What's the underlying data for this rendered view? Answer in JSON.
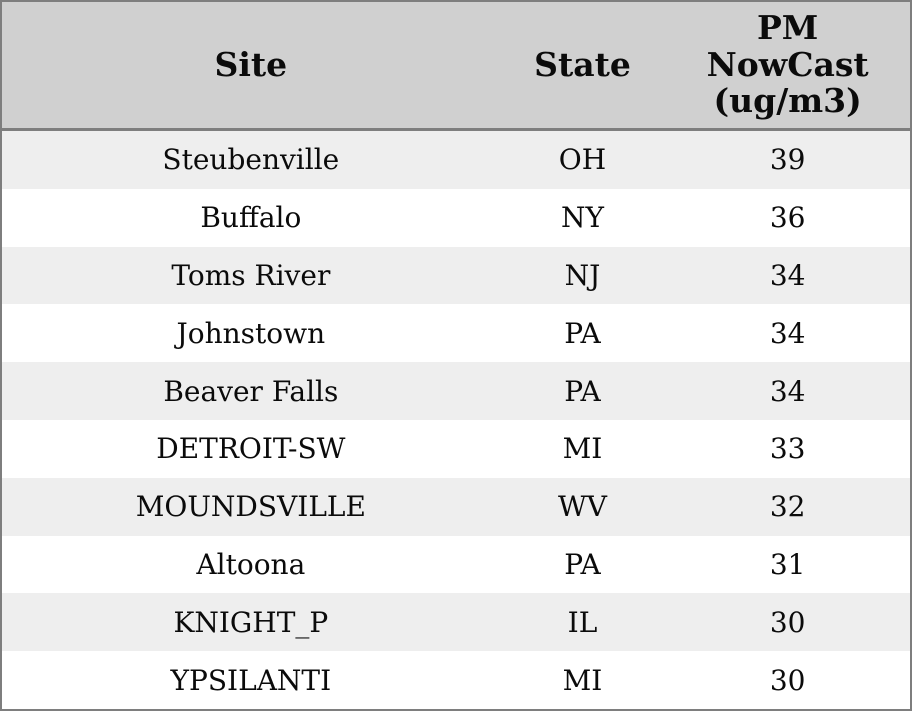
{
  "table": {
    "columns": {
      "site_label": "Site",
      "state_label": "State",
      "value_label": "PM\nNowCast\n(ug/m3)"
    },
    "rows": [
      {
        "site": "Steubenville",
        "state": "OH",
        "value": "39"
      },
      {
        "site": "Buffalo",
        "state": "NY",
        "value": "36"
      },
      {
        "site": "Toms River",
        "state": "NJ",
        "value": "34"
      },
      {
        "site": "Johnstown",
        "state": "PA",
        "value": "34"
      },
      {
        "site": "Beaver Falls",
        "state": "PA",
        "value": "34"
      },
      {
        "site": "DETROIT-SW",
        "state": "MI",
        "value": "33"
      },
      {
        "site": "MOUNDSVILLE",
        "state": "WV",
        "value": "32"
      },
      {
        "site": "Altoona",
        "state": "PA",
        "value": "31"
      },
      {
        "site": "KNIGHT_P",
        "state": "IL",
        "value": "30"
      },
      {
        "site": "YPSILANTI",
        "state": "MI",
        "value": "30"
      }
    ]
  },
  "colors": {
    "header_bg": "#d0d0d0",
    "row_stripe_bg": "#eeeeee",
    "row_plain_bg": "#ffffff",
    "border": "#7e7e7e",
    "text": "#0b0b0b"
  },
  "chart_data": {
    "type": "table",
    "columns": [
      "Site",
      "State",
      "PM NowCast (ug/m3)"
    ],
    "rows": [
      [
        "Steubenville",
        "OH",
        39
      ],
      [
        "Buffalo",
        "NY",
        36
      ],
      [
        "Toms River",
        "NJ",
        34
      ],
      [
        "Johnstown",
        "PA",
        34
      ],
      [
        "Beaver Falls",
        "PA",
        34
      ],
      [
        "DETROIT-SW",
        "MI",
        33
      ],
      [
        "MOUNDSVILLE",
        "WV",
        32
      ],
      [
        "Altoona",
        "PA",
        31
      ],
      [
        "KNIGHT_P",
        "IL",
        30
      ],
      [
        "YPSILANTI",
        "MI",
        30
      ]
    ],
    "title": "",
    "legend": "none",
    "grid": "row-stripes"
  }
}
